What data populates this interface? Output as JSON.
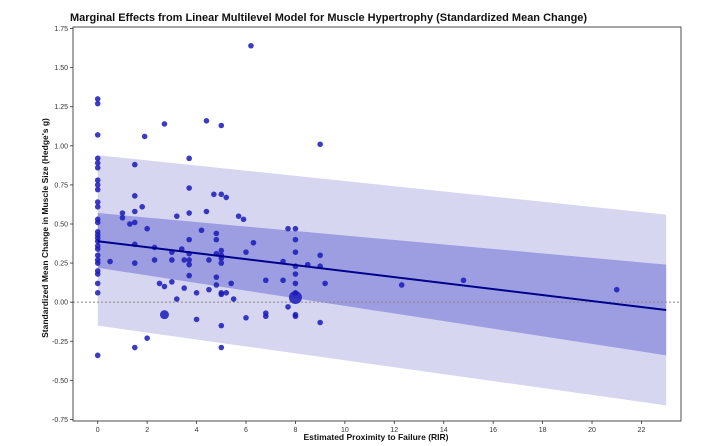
{
  "chart_data": {
    "type": "scatter",
    "title": "Marginal Effects from Linear Multilevel Model for Muscle Hypertrophy (Standardized Mean Change)",
    "xlabel": "Estimated Proximity to Failure (RIR)",
    "ylabel": "Standardized Mean Change in Muscle Size (Hedge's g)",
    "xlim": [
      -1.0,
      23.6
    ],
    "ylim": [
      -0.76,
      1.76
    ],
    "xticks": [
      0,
      2,
      4,
      6,
      8,
      10,
      12,
      14,
      16,
      18,
      20,
      22
    ],
    "yticks": [
      -0.75,
      -0.5,
      -0.25,
      0.0,
      0.25,
      0.5,
      0.75,
      1.0,
      1.25,
      1.5,
      1.75
    ],
    "ytick_labels": [
      "-0.75",
      "-0.50",
      "-0.25",
      "0.00",
      "0.25",
      "0.50",
      "0.75",
      "1.00",
      "1.25",
      "1.50",
      "1.75"
    ],
    "reference_line": {
      "y": 0.0,
      "style": "dotted"
    },
    "fit_line": {
      "x": [
        0,
        23
      ],
      "y": [
        0.39,
        -0.05
      ]
    },
    "confidence_band": {
      "x": [
        0,
        23
      ],
      "lower": [
        0.22,
        -0.34
      ],
      "upper": [
        0.57,
        0.24
      ]
    },
    "prediction_band": {
      "x": [
        0,
        23
      ],
      "lower": [
        -0.15,
        -0.66
      ],
      "upper": [
        0.94,
        0.56
      ]
    },
    "grid": false,
    "colors": {
      "points": "#1a1ab8",
      "fit_line": "#00008b",
      "confidence_band": "#8e8ede",
      "prediction_band": "#cfcfee",
      "reference_line": "#888888"
    },
    "points": [
      {
        "x": 0,
        "y": 1.3,
        "size": 1
      },
      {
        "x": 0,
        "y": 1.27,
        "size": 1
      },
      {
        "x": 0,
        "y": 1.07,
        "size": 1
      },
      {
        "x": 0,
        "y": 0.92,
        "size": 1
      },
      {
        "x": 0,
        "y": 0.89,
        "size": 1
      },
      {
        "x": 0,
        "y": 0.86,
        "size": 1
      },
      {
        "x": 0,
        "y": 0.78,
        "size": 1
      },
      {
        "x": 0,
        "y": 0.75,
        "size": 1
      },
      {
        "x": 0,
        "y": 0.72,
        "size": 1
      },
      {
        "x": 0,
        "y": 0.64,
        "size": 1
      },
      {
        "x": 0,
        "y": 0.61,
        "size": 1
      },
      {
        "x": 0,
        "y": 0.53,
        "size": 1
      },
      {
        "x": 0,
        "y": 0.51,
        "size": 1
      },
      {
        "x": 0,
        "y": 0.45,
        "size": 1
      },
      {
        "x": 0,
        "y": 0.43,
        "size": 1
      },
      {
        "x": 0,
        "y": 0.41,
        "size": 1
      },
      {
        "x": 0,
        "y": 0.39,
        "size": 1
      },
      {
        "x": 0,
        "y": 0.36,
        "size": 1
      },
      {
        "x": 0,
        "y": 0.34,
        "size": 1
      },
      {
        "x": 0,
        "y": 0.3,
        "size": 1
      },
      {
        "x": 0,
        "y": 0.27,
        "size": 1
      },
      {
        "x": 0,
        "y": 0.25,
        "size": 1
      },
      {
        "x": 0,
        "y": 0.2,
        "size": 1
      },
      {
        "x": 0,
        "y": 0.18,
        "size": 1
      },
      {
        "x": 0,
        "y": 0.12,
        "size": 1
      },
      {
        "x": 0,
        "y": 0.06,
        "size": 1
      },
      {
        "x": 0,
        "y": -0.34,
        "size": 1
      },
      {
        "x": 0.5,
        "y": 0.26,
        "size": 1
      },
      {
        "x": 1.0,
        "y": 0.57,
        "size": 1
      },
      {
        "x": 1.0,
        "y": 0.54,
        "size": 1
      },
      {
        "x": 1.3,
        "y": 0.5,
        "size": 1
      },
      {
        "x": 1.5,
        "y": 0.88,
        "size": 1
      },
      {
        "x": 1.5,
        "y": 0.68,
        "size": 1
      },
      {
        "x": 1.5,
        "y": 0.58,
        "size": 1
      },
      {
        "x": 1.5,
        "y": 0.51,
        "size": 1
      },
      {
        "x": 1.5,
        "y": 0.37,
        "size": 1
      },
      {
        "x": 1.5,
        "y": 0.25,
        "size": 1
      },
      {
        "x": 1.5,
        "y": -0.29,
        "size": 1
      },
      {
        "x": 1.8,
        "y": 0.61,
        "size": 1
      },
      {
        "x": 1.9,
        "y": 1.06,
        "size": 1
      },
      {
        "x": 2.0,
        "y": 0.47,
        "size": 1
      },
      {
        "x": 2.0,
        "y": -0.23,
        "size": 1
      },
      {
        "x": 2.3,
        "y": 0.35,
        "size": 1
      },
      {
        "x": 2.3,
        "y": 0.27,
        "size": 1
      },
      {
        "x": 2.5,
        "y": 0.12,
        "size": 1
      },
      {
        "x": 2.7,
        "y": 1.14,
        "size": 1
      },
      {
        "x": 2.7,
        "y": 0.1,
        "size": 1
      },
      {
        "x": 2.7,
        "y": -0.08,
        "size": 2
      },
      {
        "x": 3.0,
        "y": 0.32,
        "size": 1
      },
      {
        "x": 3.0,
        "y": 0.27,
        "size": 1
      },
      {
        "x": 3.0,
        "y": 0.13,
        "size": 1
      },
      {
        "x": 3.2,
        "y": 0.55,
        "size": 1
      },
      {
        "x": 3.2,
        "y": 0.02,
        "size": 1
      },
      {
        "x": 3.4,
        "y": 0.34,
        "size": 1
      },
      {
        "x": 3.5,
        "y": 0.27,
        "size": 1
      },
      {
        "x": 3.5,
        "y": 0.09,
        "size": 1
      },
      {
        "x": 3.7,
        "y": 0.92,
        "size": 1
      },
      {
        "x": 3.7,
        "y": 0.73,
        "size": 1
      },
      {
        "x": 3.7,
        "y": 0.57,
        "size": 1
      },
      {
        "x": 3.7,
        "y": 0.4,
        "size": 1
      },
      {
        "x": 3.7,
        "y": 0.31,
        "size": 1
      },
      {
        "x": 3.7,
        "y": 0.27,
        "size": 1
      },
      {
        "x": 3.7,
        "y": 0.24,
        "size": 1
      },
      {
        "x": 3.7,
        "y": 0.17,
        "size": 1
      },
      {
        "x": 4.0,
        "y": 0.06,
        "size": 1
      },
      {
        "x": 4.0,
        "y": -0.11,
        "size": 1
      },
      {
        "x": 4.2,
        "y": 0.46,
        "size": 1
      },
      {
        "x": 4.4,
        "y": 1.16,
        "size": 1
      },
      {
        "x": 4.4,
        "y": 0.58,
        "size": 1
      },
      {
        "x": 4.5,
        "y": 0.27,
        "size": 1
      },
      {
        "x": 4.5,
        "y": 0.08,
        "size": 1
      },
      {
        "x": 4.7,
        "y": 0.69,
        "size": 1
      },
      {
        "x": 4.8,
        "y": 0.44,
        "size": 1
      },
      {
        "x": 4.8,
        "y": 0.4,
        "size": 1
      },
      {
        "x": 4.8,
        "y": 0.31,
        "size": 1
      },
      {
        "x": 4.8,
        "y": 0.16,
        "size": 1
      },
      {
        "x": 4.8,
        "y": 0.11,
        "size": 1
      },
      {
        "x": 5.0,
        "y": 1.13,
        "size": 1
      },
      {
        "x": 5.0,
        "y": 0.69,
        "size": 1
      },
      {
        "x": 5.0,
        "y": 0.33,
        "size": 1
      },
      {
        "x": 5.0,
        "y": 0.3,
        "size": 1
      },
      {
        "x": 5.0,
        "y": 0.28,
        "size": 1
      },
      {
        "x": 5.0,
        "y": 0.25,
        "size": 1
      },
      {
        "x": 5.0,
        "y": 0.06,
        "size": 1
      },
      {
        "x": 5.0,
        "y": 0.05,
        "size": 1
      },
      {
        "x": 5.0,
        "y": -0.15,
        "size": 1
      },
      {
        "x": 5.0,
        "y": -0.29,
        "size": 1
      },
      {
        "x": 5.2,
        "y": 0.67,
        "size": 1
      },
      {
        "x": 5.2,
        "y": 0.06,
        "size": 1
      },
      {
        "x": 5.4,
        "y": 0.12,
        "size": 1
      },
      {
        "x": 5.5,
        "y": 0.02,
        "size": 1
      },
      {
        "x": 5.7,
        "y": 0.55,
        "size": 1
      },
      {
        "x": 5.9,
        "y": 0.53,
        "size": 1
      },
      {
        "x": 6.0,
        "y": 0.32,
        "size": 1
      },
      {
        "x": 6.0,
        "y": -0.1,
        "size": 1
      },
      {
        "x": 6.2,
        "y": 1.64,
        "size": 1
      },
      {
        "x": 6.3,
        "y": 0.38,
        "size": 1
      },
      {
        "x": 6.8,
        "y": 0.14,
        "size": 1
      },
      {
        "x": 6.8,
        "y": -0.07,
        "size": 1
      },
      {
        "x": 6.8,
        "y": -0.09,
        "size": 1
      },
      {
        "x": 7.5,
        "y": 0.26,
        "size": 1
      },
      {
        "x": 7.5,
        "y": 0.14,
        "size": 1
      },
      {
        "x": 7.7,
        "y": 0.47,
        "size": 1
      },
      {
        "x": 7.7,
        "y": -0.03,
        "size": 1
      },
      {
        "x": 8.0,
        "y": 0.47,
        "size": 1
      },
      {
        "x": 8.0,
        "y": 0.4,
        "size": 1
      },
      {
        "x": 8.0,
        "y": 0.32,
        "size": 1
      },
      {
        "x": 8.0,
        "y": 0.23,
        "size": 1
      },
      {
        "x": 8.0,
        "y": 0.18,
        "size": 1
      },
      {
        "x": 8.0,
        "y": 0.12,
        "size": 1
      },
      {
        "x": 8.0,
        "y": 0.06,
        "size": 1
      },
      {
        "x": 8.0,
        "y": -0.08,
        "size": 1
      },
      {
        "x": 8.0,
        "y": -0.09,
        "size": 1
      },
      {
        "x": 8.0,
        "y": 0.03,
        "size": 3
      },
      {
        "x": 8.5,
        "y": 0.24,
        "size": 1
      },
      {
        "x": 9.0,
        "y": 1.01,
        "size": 1
      },
      {
        "x": 9.0,
        "y": 0.3,
        "size": 1
      },
      {
        "x": 9.0,
        "y": 0.23,
        "size": 1
      },
      {
        "x": 9.0,
        "y": -0.13,
        "size": 1
      },
      {
        "x": 9.2,
        "y": 0.12,
        "size": 1
      },
      {
        "x": 12.3,
        "y": 0.11,
        "size": 1
      },
      {
        "x": 14.8,
        "y": 0.14,
        "size": 1
      },
      {
        "x": 21.0,
        "y": 0.08,
        "size": 1
      }
    ]
  }
}
